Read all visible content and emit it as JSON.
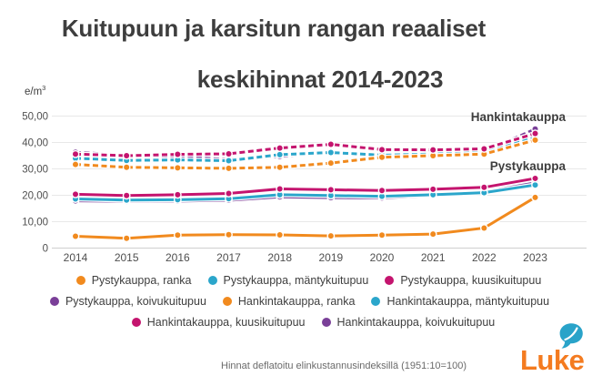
{
  "title": {
    "line1": "Kuitupuun ja karsitun rangan reaaliset",
    "line2": "keskihinnat 2014-2023"
  },
  "unit": {
    "base": "e/m",
    "sup": "3"
  },
  "annotations": {
    "hankintakauppa": "Hankintakauppa",
    "pystykauppa": "Pystykauppa"
  },
  "footer": "Hinnat deflatoitu elinkustannusindeksillä (1951:10=100)",
  "logo": {
    "text": "Luke",
    "orange": "#f47b20",
    "cyan": "#29a3c9"
  },
  "chart_data": {
    "type": "line",
    "title": "Kuitupuun ja karsitun rangan reaaliset keskihinnat 2014-2023",
    "ylabel": "e/m³",
    "ylim": [
      0,
      50
    ],
    "yticks": [
      0,
      10,
      20,
      30,
      40,
      50
    ],
    "ytick_labels": [
      "0",
      "10,00",
      "20,00",
      "30,00",
      "40,00",
      "50,00"
    ],
    "categories": [
      "2014",
      "2015",
      "2016",
      "2017",
      "2018",
      "2019",
      "2020",
      "2021",
      "2022",
      "2023"
    ],
    "grid": true,
    "legend_position": "bottom",
    "series": [
      {
        "name": "Pystykauppa, ranka",
        "color": "#f18a1e",
        "dashed": false,
        "values": [
          4.5,
          3.7,
          4.9,
          5.1,
          5.0,
          4.6,
          4.9,
          5.3,
          7.6,
          19.2
        ]
      },
      {
        "name": "Pystykauppa, mäntykuitupuu",
        "color": "#2ba6cb",
        "dashed": false,
        "values": [
          18.6,
          18.2,
          18.3,
          18.7,
          20.2,
          19.9,
          19.6,
          20.2,
          21.0,
          23.9
        ]
      },
      {
        "name": "Pystykauppa, kuusikuitupuu",
        "color": "#c4146e",
        "dashed": false,
        "values": [
          20.4,
          19.9,
          20.2,
          20.7,
          22.4,
          22.1,
          21.8,
          22.3,
          23.0,
          26.4
        ]
      },
      {
        "name": "Pystykauppa, koivukuitupuu",
        "color": "#7a3f98",
        "dashed": false,
        "values": [
          17.9,
          17.7,
          17.8,
          18.1,
          19.4,
          19.1,
          19.0,
          19.9,
          21.3,
          24.7
        ]
      },
      {
        "name": "Hankintakauppa, ranka",
        "color": "#f18a1e",
        "dashed": true,
        "values": [
          31.7,
          30.6,
          30.4,
          30.2,
          30.6,
          32.2,
          34.4,
          35.0,
          35.6,
          40.9
        ]
      },
      {
        "name": "Hankintakauppa, mäntykuitupuu",
        "color": "#2ba6cb",
        "dashed": true,
        "values": [
          34.0,
          33.2,
          33.4,
          33.1,
          35.4,
          36.2,
          35.2,
          35.6,
          36.2,
          42.5
        ]
      },
      {
        "name": "Hankintakauppa, kuusikuitupuu",
        "color": "#c4146e",
        "dashed": true,
        "values": [
          35.6,
          35.0,
          35.5,
          35.7,
          37.9,
          39.3,
          37.3,
          37.2,
          37.6,
          43.4
        ]
      },
      {
        "name": "Hankintakauppa, koivukuitupuu",
        "color": "#7a3f98",
        "dashed": true,
        "values": [
          36.3,
          35.2,
          34.6,
          33.6,
          34.7,
          36.4,
          34.9,
          35.6,
          36.4,
          45.1
        ]
      }
    ],
    "draw_order": [
      3,
      1,
      2,
      0,
      7,
      5,
      4,
      6
    ],
    "legend_rows": [
      [
        0,
        1,
        2
      ],
      [
        3,
        4,
        5
      ],
      [
        6,
        7
      ]
    ]
  }
}
